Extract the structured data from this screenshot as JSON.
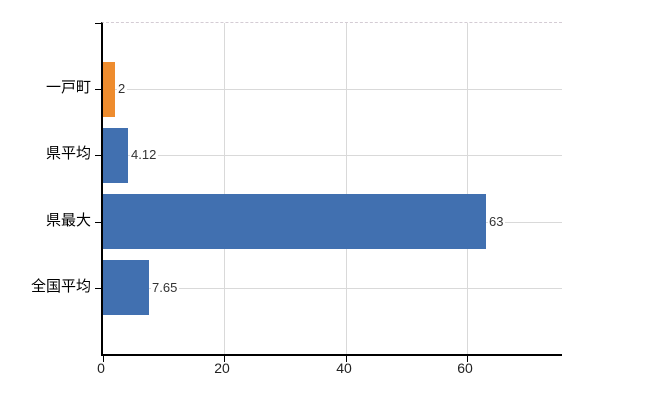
{
  "chart_data": {
    "type": "bar",
    "orientation": "horizontal",
    "title": "",
    "xlabel": "",
    "ylabel": "",
    "categories": [
      "一戸町",
      "県平均",
      "県最大",
      "全国平均"
    ],
    "values": [
      2,
      4.12,
      63,
      7.65
    ],
    "value_labels": [
      "2",
      "4.12",
      "63",
      "7.65"
    ],
    "bar_colors": [
      "#ee8c2e",
      "#4170b0",
      "#4170b0",
      "#4170b0"
    ],
    "x_ticks": [
      0,
      20,
      40,
      60
    ],
    "x_tick_labels": [
      "0",
      "20",
      "40",
      "60"
    ],
    "xlim": [
      0,
      75.6
    ],
    "grid": true,
    "legend": "none",
    "colors": {
      "highlight_orange": "#ee8c2e",
      "series_blue": "#4170b0",
      "gridline": "#d9d9d9",
      "axis": "#000000",
      "value_label_text": "#333333",
      "tick_label_text": "#222222",
      "category_label_text": "#000000",
      "background": "#ffffff"
    }
  }
}
